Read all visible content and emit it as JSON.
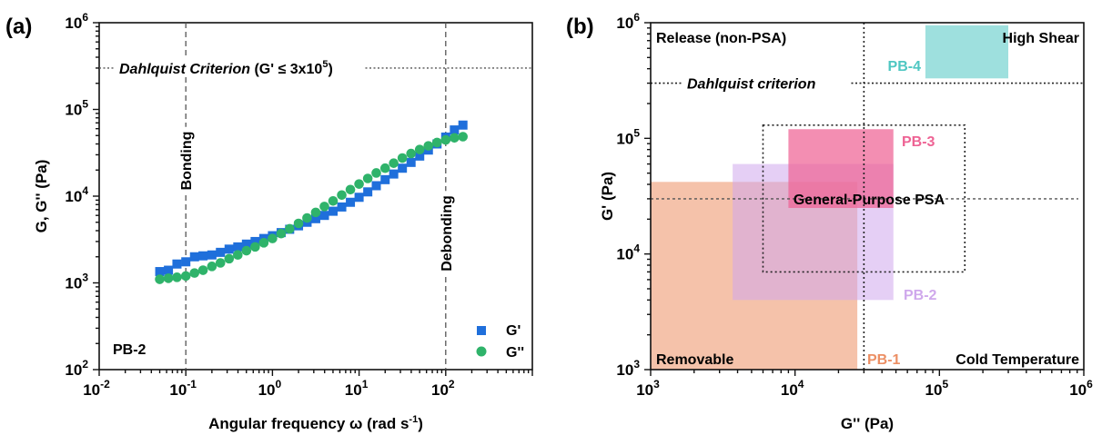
{
  "chart_data": [
    {
      "panel": "(a)",
      "type": "scatter",
      "xlabel": "Angular frequency ω (rad s",
      "xlabel_sup": "-1",
      "xlabel_close": ")",
      "ylabel": "G, G'' (Pa)",
      "x_scale": "log",
      "y_scale": "log",
      "xlim": [
        0.01,
        1000
      ],
      "ylim": [
        100,
        1000000
      ],
      "x_ticks": [
        {
          "value": 0.01,
          "base": "10",
          "exp": "-2"
        },
        {
          "value": 0.1,
          "base": "10",
          "exp": "-1"
        },
        {
          "value": 1,
          "base": "10",
          "exp": "0"
        },
        {
          "value": 10,
          "base": "10",
          "exp": "1"
        },
        {
          "value": 100,
          "base": "10",
          "exp": "2"
        }
      ],
      "y_ticks": [
        {
          "value": 100,
          "base": "10",
          "exp": "2"
        },
        {
          "value": 1000,
          "base": "10",
          "exp": "3"
        },
        {
          "value": 10000,
          "base": "10",
          "exp": "4"
        },
        {
          "value": 100000,
          "base": "10",
          "exp": "5"
        },
        {
          "value": 1000000,
          "base": "10",
          "exp": "6"
        }
      ],
      "grid": false,
      "legend_position": "bottom-right",
      "sample_label": "PB-2",
      "reference_lines": {
        "dahlquist": {
          "y": 300000,
          "label_main": "Dahlquist Criterion",
          "label_tail": " (G' ≤ 3x10",
          "label_sup": "5",
          "label_end": ")"
        },
        "bonding": {
          "x": 0.1,
          "label": "Bonding"
        },
        "debonding": {
          "x": 100,
          "label": "Debonding"
        }
      },
      "series": [
        {
          "name": "G'",
          "marker": "square",
          "color": "#1f6fdb",
          "x": [
            0.05,
            0.063,
            0.079,
            0.1,
            0.126,
            0.158,
            0.2,
            0.251,
            0.316,
            0.398,
            0.501,
            0.631,
            0.794,
            1.0,
            1.26,
            1.58,
            2.0,
            2.51,
            3.16,
            3.98,
            5.01,
            6.31,
            7.94,
            10.0,
            12.6,
            15.8,
            20.0,
            25.1,
            31.6,
            39.8,
            50.1,
            63.1,
            79.4,
            100,
            126,
            158
          ],
          "y": [
            1350,
            1400,
            1650,
            1750,
            2000,
            2050,
            2100,
            2250,
            2450,
            2600,
            2800,
            3000,
            3250,
            3500,
            3800,
            4150,
            4550,
            5000,
            5500,
            6000,
            6700,
            7500,
            8500,
            9700,
            11200,
            13200,
            15500,
            18000,
            21000,
            24500,
            29000,
            34000,
            40000,
            48000,
            58000,
            66000
          ]
        },
        {
          "name": "G''",
          "marker": "circle",
          "color": "#2fb36a",
          "x": [
            0.05,
            0.063,
            0.079,
            0.1,
            0.126,
            0.158,
            0.2,
            0.251,
            0.316,
            0.398,
            0.501,
            0.631,
            0.794,
            1.0,
            1.26,
            1.58,
            2.0,
            2.51,
            3.16,
            3.98,
            5.01,
            6.31,
            7.94,
            10.0,
            12.6,
            15.8,
            20.0,
            25.1,
            31.6,
            39.8,
            50.1,
            63.1,
            79.4,
            100,
            126,
            158
          ],
          "y": [
            1100,
            1130,
            1160,
            1200,
            1300,
            1400,
            1550,
            1700,
            1900,
            2100,
            2350,
            2600,
            2900,
            3250,
            3700,
            4200,
            4850,
            5600,
            6500,
            7600,
            8800,
            10300,
            11900,
            13800,
            16000,
            18500,
            21000,
            24000,
            27500,
            31000,
            34500,
            38000,
            41500,
            44500,
            47000,
            48500
          ]
        }
      ]
    },
    {
      "panel": "(b)",
      "type": "area",
      "xlabel": "G'' (Pa)",
      "ylabel": "G' (Pa)",
      "x_scale": "log",
      "y_scale": "log",
      "xlim": [
        1000,
        1000000
      ],
      "ylim": [
        1000,
        1000000
      ],
      "x_ticks": [
        {
          "value": 1000,
          "base": "10",
          "exp": "3"
        },
        {
          "value": 10000,
          "base": "10",
          "exp": "4"
        },
        {
          "value": 100000,
          "base": "10",
          "exp": "5"
        },
        {
          "value": 1000000,
          "base": "10",
          "exp": "6"
        }
      ],
      "y_ticks": [
        {
          "value": 1000,
          "base": "10",
          "exp": "3"
        },
        {
          "value": 10000,
          "base": "10",
          "exp": "4"
        },
        {
          "value": 100000,
          "base": "10",
          "exp": "5"
        },
        {
          "value": 1000000,
          "base": "10",
          "exp": "6"
        }
      ],
      "grid": false,
      "quadrant_labels": {
        "release": "Release (non-PSA)",
        "high_shear": "High Shear",
        "removable": "Removable",
        "cold_temperature": "Cold Temperature",
        "general_purpose": "General-Purpose PSA",
        "dahlquist": "Dahlquist criterion"
      },
      "reference_lines": {
        "dahlquist_y": 300000,
        "vertical_x": 30000,
        "general_purpose_box": {
          "x": [
            6000,
            150000
          ],
          "y": [
            7000,
            130000
          ]
        },
        "general_mid_y": 30000
      },
      "series": [
        {
          "name": "PB-1",
          "color": "#ec8f64",
          "x": [
            1000,
            27000
          ],
          "y": [
            1000,
            42000
          ]
        },
        {
          "name": "PB-2",
          "color": "#cfa8ec",
          "x": [
            3700,
            48000
          ],
          "y": [
            4000,
            60000
          ]
        },
        {
          "name": "PB-3",
          "color": "#ee6394",
          "x": [
            9000,
            48000
          ],
          "y": [
            25000,
            120000
          ]
        },
        {
          "name": "PB-4",
          "color": "#4fc7c2",
          "x": [
            80000,
            300000
          ],
          "y": [
            330000,
            950000
          ]
        }
      ]
    }
  ]
}
